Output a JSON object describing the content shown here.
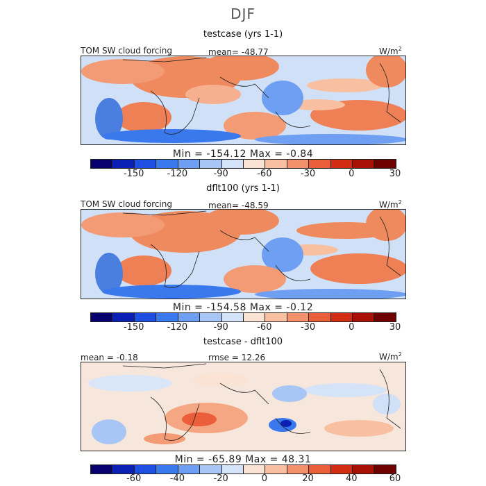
{
  "title": "DJF",
  "units": "W/m",
  "units_sup": "2",
  "panels": [
    {
      "title": "testcase (yrs 1-1)",
      "left_label": "TOM SW cloud forcing",
      "mid_label": "mean= -48.77",
      "minmax": "Min = -154.12 Max =  -0.84",
      "ticks": [
        "-150",
        "-120",
        "-90",
        "-60",
        "-30",
        "0",
        "30"
      ]
    },
    {
      "title": "dflt100 (yrs 1-1)",
      "left_label": "TOM SW cloud forcing",
      "mid_label": "mean= -48.59",
      "minmax": "Min = -154.58 Max =  -0.12",
      "ticks": [
        "-150",
        "-120",
        "-90",
        "-60",
        "-30",
        "0",
        "30"
      ]
    },
    {
      "title": "testcase - dflt100",
      "left_label": "mean =  -0.18",
      "mid_label": "rmse =  12.26",
      "minmax": "Min = -65.89 Max =  48.31",
      "ticks": [
        "-60",
        "-40",
        "-20",
        "0",
        "20",
        "40",
        "60"
      ]
    }
  ],
  "colorbar_colors": [
    "#08006e",
    "#0b1fb4",
    "#1f4fe0",
    "#3a78ee",
    "#6f9ff2",
    "#a8c6f5",
    "#d4e3f8",
    "#fbe3d3",
    "#f8c0a1",
    "#f2916b",
    "#ea5f39",
    "#d22d12",
    "#a80f05",
    "#700000"
  ]
}
